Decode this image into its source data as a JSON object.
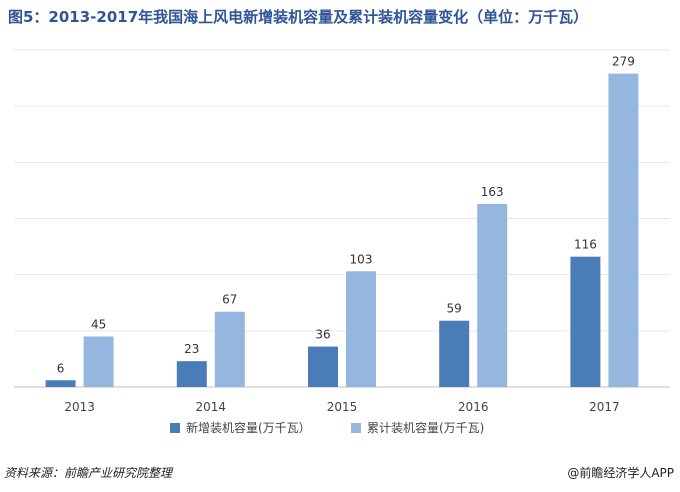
{
  "title": "图5：2013-2017年我国海上风电新增装机容量及累计装机容量变化（单位：万千瓦）",
  "source": "资料来源：前瞻产业研究院整理",
  "brand": "@前瞻经济学人APP",
  "colors": {
    "title": "#2f5597",
    "series_new": "#4a7db8",
    "series_total": "#95b7df"
  },
  "chart_data": {
    "type": "bar",
    "title": "图5：2013-2017年我国海上风电新增装机容量及累计装机容量变化（单位：万千瓦）",
    "categories": [
      "2013",
      "2014",
      "2015",
      "2016",
      "2017"
    ],
    "series": [
      {
        "name": "新增装机容量(万千瓦）",
        "values": [
          6,
          23,
          36,
          59,
          116
        ],
        "color": "#4a7db8"
      },
      {
        "name": "累计装机容量(万千瓦)",
        "values": [
          45,
          67,
          103,
          163,
          279
        ],
        "color": "#95b7df"
      }
    ],
    "ylim": [
      0,
      300
    ],
    "grid": true,
    "legend_position": "bottom",
    "data_labels": true
  }
}
